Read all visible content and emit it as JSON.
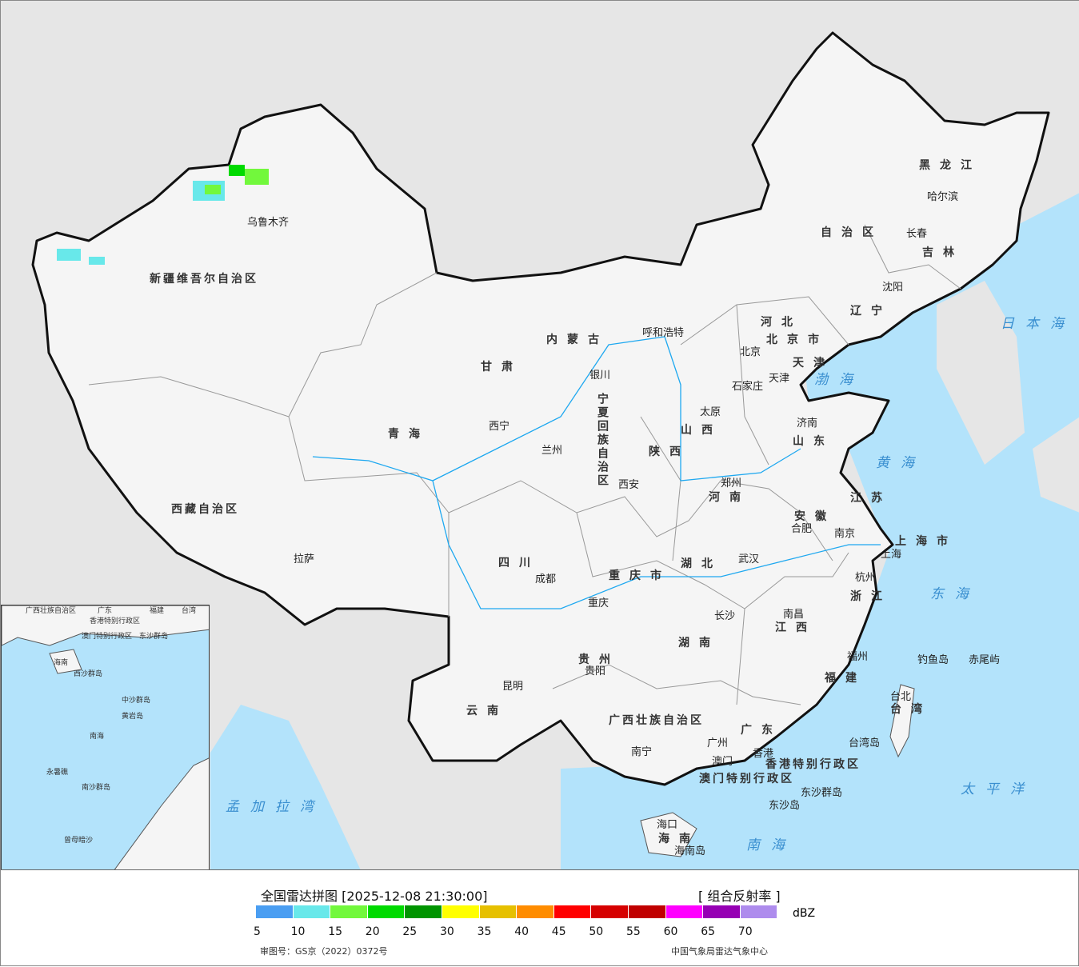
{
  "title": "全国雷达拼图 [2025-12-08 21:30:00]",
  "product": "[ 组合反射率 ]",
  "unit": "dBZ",
  "legend": {
    "colors": [
      "#4a9ef2",
      "#68e8ea",
      "#72f83c",
      "#00da00",
      "#009400",
      "#ffff00",
      "#e6c000",
      "#ff8c00",
      "#ff0000",
      "#d60000",
      "#c00000",
      "#ff00ff",
      "#9600b4",
      "#ae8ced"
    ],
    "ticks": [
      "5",
      "10",
      "15",
      "20",
      "25",
      "30",
      "35",
      "40",
      "45",
      "50",
      "55",
      "60",
      "65",
      "70"
    ]
  },
  "approval": "审图号：GS京（2022）0372号",
  "source": "中国气象局雷达气象中心",
  "colors": {
    "land": "#f5f5f5",
    "sea": "#b3e3fb",
    "background": "#e6e6e6",
    "border": "#111111"
  },
  "provinces": [
    "新疆维吾尔自治区",
    "西藏自治区",
    "青海",
    "甘肃",
    "内蒙古",
    "自治区",
    "黑龙江",
    "吉林",
    "辽宁",
    "河北",
    "山西",
    "陕西",
    "四川",
    "云南",
    "贵州",
    "湖南",
    "湖北",
    "河南",
    "山东",
    "江苏",
    "安徽",
    "浙江",
    "江西",
    "福建",
    "广东",
    "广西壮族自治区",
    "海南",
    "台湾",
    "重庆市",
    "上海市",
    "天津",
    "北京市",
    "宁夏回族自治区",
    "香港特别行政区",
    "澳门特别行政区"
  ],
  "cities": [
    "乌鲁木齐",
    "拉萨",
    "西宁",
    "兰州",
    "银川",
    "呼和浩特",
    "北京",
    "天津",
    "石家庄",
    "太原",
    "济南",
    "郑州",
    "西安",
    "成都",
    "重庆",
    "武汉",
    "合肥",
    "南京",
    "上海",
    "杭州",
    "长沙",
    "南昌",
    "福州",
    "台北",
    "贵阳",
    "昆明",
    "南宁",
    "广州",
    "香港",
    "澳门",
    "海口",
    "哈尔滨",
    "长春",
    "沈阳"
  ],
  "seas": [
    "渤海",
    "黄海",
    "东海",
    "日本海",
    "南海",
    "太平洋",
    "孟加拉湾"
  ],
  "islands": [
    "钓鱼岛",
    "赤尾屿",
    "台湾岛",
    "东沙群岛",
    "东沙岛",
    "海南岛"
  ],
  "inset_labels": [
    "广西壮族自治区",
    "广东",
    "福建",
    "台湾",
    "海南",
    "香港特别行政区",
    "澳门特别行政区",
    "东沙群岛",
    "西沙群岛",
    "中沙群岛",
    "黄岩岛",
    "南海",
    "南沙群岛",
    "永暑礁",
    "曾母暗沙"
  ]
}
